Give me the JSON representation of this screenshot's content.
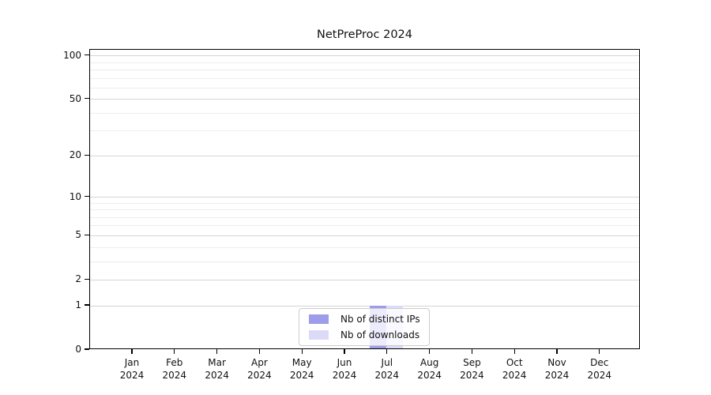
{
  "title": "NetPreProc 2024",
  "chart_data": {
    "type": "bar",
    "title": "NetPreProc 2024",
    "categories": [
      "Jan",
      "Feb",
      "Mar",
      "Apr",
      "May",
      "Jun",
      "Jul",
      "Aug",
      "Sep",
      "Oct",
      "Nov",
      "Dec"
    ],
    "year_label": "2024",
    "series": [
      {
        "name": "Nb of distinct IPs",
        "color": "#9d9dea",
        "values": [
          0,
          0,
          0,
          0,
          0,
          0,
          1,
          0,
          0,
          0,
          0,
          0
        ]
      },
      {
        "name": "Nb of downloads",
        "color": "#dbdbf8",
        "values": [
          0,
          0,
          0,
          0,
          0,
          0,
          1,
          0,
          0,
          0,
          0,
          0
        ]
      }
    ],
    "xlabel": "",
    "ylabel": "",
    "yscale": "symlog",
    "ylim": [
      0,
      110
    ],
    "yticks_major": [
      100,
      50,
      20,
      10,
      5,
      2,
      1,
      0
    ],
    "yticks_minor": [
      3,
      4,
      6,
      7,
      8,
      9,
      30,
      40,
      60,
      70,
      80,
      90
    ],
    "grid": true,
    "legend_position": "bottom-center",
    "frame_color": "#000000",
    "grid_major_color": "#d5d5d5",
    "grid_minor_color": "#ededed"
  }
}
